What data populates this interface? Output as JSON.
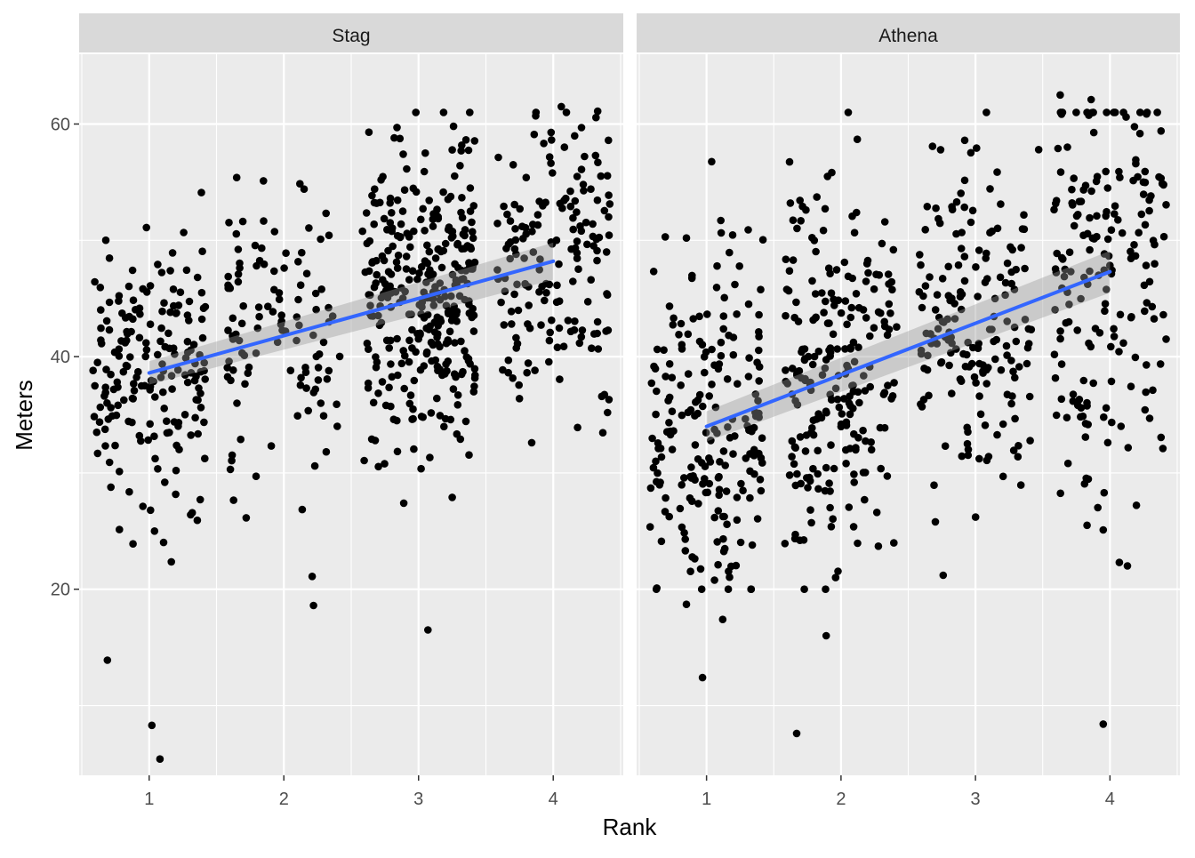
{
  "chart_data": {
    "type": "scatter",
    "facets": [
      "Stag",
      "Athena"
    ],
    "xlabel": "Rank",
    "ylabel": "Meters",
    "xlim": [
      0.48,
      4.52
    ],
    "ylim": [
      4.0,
      66.0
    ],
    "x_ticks": [
      1,
      2,
      3,
      4
    ],
    "y_ticks": [
      20,
      40,
      60
    ],
    "grid": true,
    "legend": "none",
    "colors": {
      "panel_bg": "#EBEBEB",
      "strip_bg": "#D9D9D9",
      "grid": "#FFFFFF",
      "point": "#000000",
      "fit_line": "#3366FF",
      "ribbon": "#999999",
      "text": "#1A1A1A",
      "tick_text": "#4D4D4D"
    },
    "panels": [
      {
        "facet": "Stag",
        "fit": {
          "x": [
            1,
            4
          ],
          "y": [
            38.6,
            48.2
          ],
          "ci": [
            1.0,
            1.6
          ]
        },
        "groups": [
          {
            "rank": 1,
            "n": 185,
            "mean": 38.6,
            "sd": 5.6,
            "jitter": 0.42
          },
          {
            "rank": 2,
            "n": 110,
            "mean": 42.2,
            "sd": 6.4,
            "jitter": 0.42
          },
          {
            "rank": 3,
            "n": 330,
            "mean": 45.0,
            "sd": 6.3,
            "jitter": 0.42
          },
          {
            "rank": 4,
            "n": 165,
            "mean": 48.0,
            "sd": 6.6,
            "jitter": 0.42
          }
        ],
        "outliers": [
          {
            "x": 0.69,
            "y": 13.9
          },
          {
            "x": 1.02,
            "y": 8.3
          },
          {
            "x": 1.08,
            "y": 5.4
          },
          {
            "x": 0.88,
            "y": 23.9
          },
          {
            "x": 2.21,
            "y": 21.1
          },
          {
            "x": 2.22,
            "y": 18.6
          },
          {
            "x": 3.07,
            "y": 16.5
          },
          {
            "x": 2.89,
            "y": 27.4
          },
          {
            "x": 1.65,
            "y": 55.4
          },
          {
            "x": 2.15,
            "y": 54.4
          },
          {
            "x": 2.98,
            "y": 61.0
          },
          {
            "x": 3.38,
            "y": 61.0
          },
          {
            "x": 4.06,
            "y": 61.5
          },
          {
            "x": 4.33,
            "y": 61.1
          },
          {
            "x": 2.84,
            "y": 59.7
          },
          {
            "x": 3.87,
            "y": 60.7
          },
          {
            "x": 3.26,
            "y": 59.8
          },
          {
            "x": 3.05,
            "y": 57.5
          },
          {
            "x": 4.41,
            "y": 58.6
          },
          {
            "x": 3.84,
            "y": 32.6
          },
          {
            "x": 3.25,
            "y": 27.9
          },
          {
            "x": 1.01,
            "y": 26.8
          },
          {
            "x": 1.04,
            "y": 25.0
          },
          {
            "x": 2.23,
            "y": 30.6
          }
        ]
      },
      {
        "facet": "Athena",
        "fit": {
          "x": [
            1,
            4
          ],
          "y": [
            34.0,
            47.3
          ],
          "ci": [
            1.3,
            1.8
          ]
        },
        "groups": [
          {
            "rank": 1,
            "n": 205,
            "mean": 34.0,
            "sd": 7.2,
            "jitter": 0.42
          },
          {
            "rank": 2,
            "n": 235,
            "mean": 38.3,
            "sd": 8.5,
            "jitter": 0.42
          },
          {
            "rank": 3,
            "n": 175,
            "mean": 43.0,
            "sd": 6.8,
            "jitter": 0.42
          },
          {
            "rank": 4,
            "n": 185,
            "mean": 46.2,
            "sd": 9.5,
            "jitter": 0.42
          }
        ],
        "outliers": [
          {
            "x": 0.97,
            "y": 12.4
          },
          {
            "x": 1.12,
            "y": 17.4
          },
          {
            "x": 0.85,
            "y": 18.7
          },
          {
            "x": 0.63,
            "y": 20.1
          },
          {
            "x": 1.89,
            "y": 16.0
          },
          {
            "x": 1.67,
            "y": 7.6
          },
          {
            "x": 3.95,
            "y": 8.4
          },
          {
            "x": 2.76,
            "y": 21.2
          },
          {
            "x": 4.07,
            "y": 22.3
          },
          {
            "x": 4.13,
            "y": 22.0
          },
          {
            "x": 3.63,
            "y": 62.5
          },
          {
            "x": 3.86,
            "y": 62.1
          },
          {
            "x": 4.12,
            "y": 60.6
          },
          {
            "x": 4.38,
            "y": 59.4
          },
          {
            "x": 2.92,
            "y": 58.6
          },
          {
            "x": 3.47,
            "y": 57.8
          },
          {
            "x": 0.85,
            "y": 50.2
          },
          {
            "x": 1.31,
            "y": 50.9
          },
          {
            "x": 1.96,
            "y": 21.0
          },
          {
            "x": 3.83,
            "y": 25.5
          },
          {
            "x": 3.95,
            "y": 25.1
          }
        ]
      }
    ]
  }
}
